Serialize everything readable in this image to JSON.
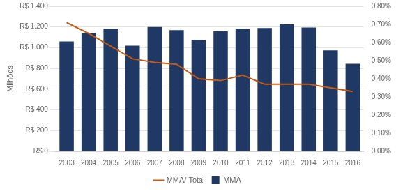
{
  "chart_data": {
    "type": "bar",
    "categories": [
      "2003",
      "2004",
      "2005",
      "2006",
      "2007",
      "2008",
      "2009",
      "2010",
      "2011",
      "2012",
      "2013",
      "2014",
      "2015",
      "2016"
    ],
    "series": [
      {
        "name": "MMA",
        "type": "bar",
        "color": "#1F3864",
        "values": [
          1060,
          1140,
          1185,
          1020,
          1200,
          1170,
          1075,
          1160,
          1185,
          1190,
          1225,
          1195,
          975,
          845
        ]
      },
      {
        "name": "MMA/ Total",
        "type": "line",
        "color": "#C55A11",
        "axis": "y2",
        "values": [
          0.0071,
          0.0065,
          0.0058,
          0.0051,
          0.0049,
          0.0048,
          0.004,
          0.0039,
          0.0042,
          0.0037,
          0.0037,
          0.0037,
          0.0035,
          0.0033
        ]
      }
    ],
    "ylabel": "Milhões",
    "ylim": [
      0,
      1400
    ],
    "yticks": [
      {
        "value": 0,
        "label": "R$ 0"
      },
      {
        "value": 200,
        "label": "R$ 200"
      },
      {
        "value": 400,
        "label": "R$ 400"
      },
      {
        "value": 600,
        "label": "R$ 600"
      },
      {
        "value": 800,
        "label": "R$ 800"
      },
      {
        "value": 1000,
        "label": "R$ 1.000"
      },
      {
        "value": 1200,
        "label": "R$ 1.200"
      },
      {
        "value": 1400,
        "label": "R$ 1.400"
      }
    ],
    "y2lim": [
      0.0,
      0.008
    ],
    "y2ticks": [
      {
        "value": 0.0,
        "label": "0,00%"
      },
      {
        "value": 0.001,
        "label": "0,10%"
      },
      {
        "value": 0.002,
        "label": "0,20%"
      },
      {
        "value": 0.003,
        "label": "0,30%"
      },
      {
        "value": 0.004,
        "label": "0,40%"
      },
      {
        "value": 0.005,
        "label": "0,50%"
      },
      {
        "value": 0.006,
        "label": "0,60%"
      },
      {
        "value": 0.007,
        "label": "0,70%"
      },
      {
        "value": 0.008,
        "label": "0,80%"
      }
    ],
    "grid": true,
    "legend": "bottom"
  }
}
